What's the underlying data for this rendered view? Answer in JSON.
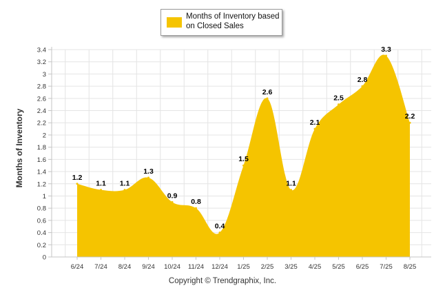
{
  "legend": {
    "label": "Months of Inventory based on Closed Sales",
    "color": "#F5C400"
  },
  "copyright": "Copyright © Trendgraphix, Inc.",
  "chart_data": {
    "type": "area",
    "categories": [
      "6/24",
      "7/24",
      "8/24",
      "9/24",
      "10/24",
      "11/24",
      "12/24",
      "1/25",
      "2/25",
      "3/25",
      "4/25",
      "5/25",
      "6/25",
      "7/25",
      "8/25"
    ],
    "series": [
      {
        "name": "Months of Inventory based on Closed Sales",
        "values": [
          1.2,
          1.1,
          1.1,
          1.3,
          0.9,
          0.8,
          0.4,
          1.5,
          2.6,
          1.1,
          2.1,
          2.5,
          2.8,
          3.3,
          2.2
        ],
        "labels": [
          "1.2",
          "1.1",
          "1.1",
          "1.3",
          "0.9",
          "0.8",
          "0.4",
          "1.5",
          "2.6",
          "1.1",
          "2.1",
          "2.5",
          "2.8",
          "3.3",
          "2.2"
        ]
      }
    ],
    "ylabel": "Months of Inventory",
    "xlabel": "",
    "ylim": [
      0,
      3.4
    ],
    "yticks": [
      "0",
      "0.2",
      "0.4",
      "0.6",
      "0.8",
      "1",
      "1.2",
      "1.4",
      "1.6",
      "1.8",
      "2",
      "2.2",
      "2.4",
      "2.6",
      "2.8",
      "3",
      "3.2",
      "3.4"
    ],
    "grid": true,
    "legend_position": "top-center",
    "fill_color": "#F5C400",
    "grid_color": "#e4e4e4",
    "axis_color": "#c4c4c4"
  }
}
